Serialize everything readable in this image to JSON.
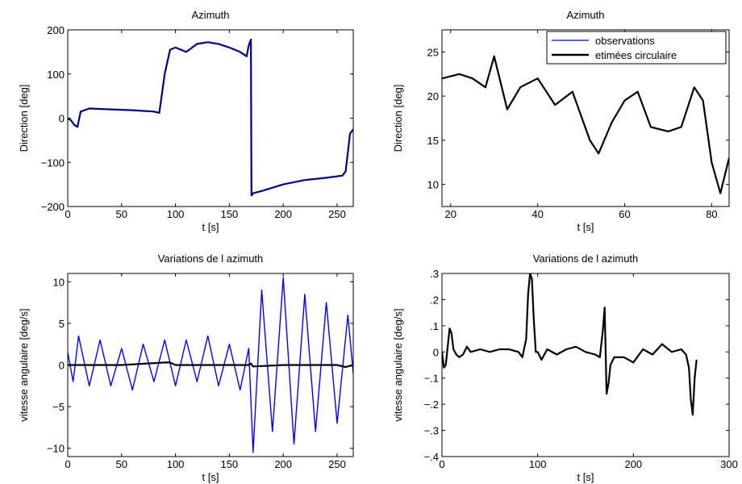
{
  "chart_data": [
    {
      "type": "line",
      "title": "Azimuth",
      "xlabel": "t [s]",
      "ylabel": "Direction [deg]",
      "xlim": [
        0,
        265
      ],
      "ylim": [
        -200,
        200
      ],
      "xticks": [
        0,
        50,
        100,
        150,
        200,
        250
      ],
      "yticks": [
        -200,
        -100,
        0,
        100,
        200
      ],
      "grid": false,
      "series": [
        {
          "color": "#0000ff",
          "x": [
            0,
            3,
            6,
            9,
            12,
            20,
            40,
            60,
            80,
            85,
            90,
            95,
            100,
            110,
            120,
            130,
            140,
            150,
            160,
            166,
            168,
            170,
            170.5,
            172,
            180,
            200,
            220,
            240,
            255,
            258,
            262,
            265
          ],
          "y": [
            0,
            -5,
            -15,
            -20,
            15,
            22,
            20,
            18,
            15,
            12,
            100,
            155,
            160,
            150,
            168,
            172,
            168,
            160,
            150,
            140,
            165,
            178,
            -175,
            -170,
            -165,
            -150,
            -140,
            -135,
            -130,
            -120,
            -35,
            -25
          ]
        },
        {
          "color": "#000080",
          "x": [
            0,
            3,
            6,
            9,
            12,
            20,
            40,
            60,
            80,
            85,
            90,
            95,
            100,
            110,
            120,
            130,
            140,
            150,
            160,
            166,
            168,
            170,
            170.5,
            172,
            180,
            200,
            220,
            240,
            255,
            258,
            262,
            265
          ],
          "y": [
            0,
            -5,
            -15,
            -20,
            15,
            22,
            20,
            18,
            15,
            12,
            100,
            155,
            160,
            150,
            168,
            172,
            168,
            160,
            150,
            140,
            165,
            178,
            -175,
            -170,
            -165,
            -150,
            -140,
            -135,
            -130,
            -120,
            -35,
            -25
          ]
        }
      ]
    },
    {
      "type": "line",
      "title": "Azimuth",
      "xlabel": "t [s]",
      "ylabel": "Direction [deg]",
      "xlim": [
        18,
        84
      ],
      "ylim": [
        7.5,
        27.5
      ],
      "xticks": [
        20,
        40,
        60,
        80
      ],
      "yticks": [
        10,
        15,
        20,
        25
      ],
      "grid": false,
      "legend": {
        "position": "top-right"
      },
      "series": [
        {
          "name": "observations",
          "color": "#0000ff",
          "x": [
            18,
            22,
            25,
            28,
            30,
            33,
            36,
            40,
            44,
            48,
            52,
            54,
            57,
            60,
            63,
            66,
            70,
            73,
            76,
            78,
            80,
            82,
            84
          ],
          "y": [
            22,
            22.5,
            22,
            21,
            24.5,
            18.5,
            21,
            22,
            19,
            20.5,
            15,
            13.5,
            17,
            19.5,
            20.5,
            16.5,
            16,
            16.5,
            21,
            19.5,
            12.5,
            9,
            13
          ]
        },
        {
          "name": "etimées circulaire",
          "color": "#000000",
          "x": [
            18,
            22,
            25,
            28,
            30,
            33,
            36,
            40,
            44,
            48,
            52,
            54,
            57,
            60,
            63,
            66,
            70,
            73,
            76,
            78,
            80,
            82,
            84
          ],
          "y": [
            22,
            22.5,
            22,
            21,
            24.5,
            18.5,
            21,
            22,
            19,
            20.5,
            15,
            13.5,
            17,
            19.5,
            20.5,
            16.5,
            16,
            16.5,
            21,
            19.5,
            12.5,
            9,
            13
          ]
        }
      ]
    },
    {
      "type": "line",
      "title": "Variations de l azimuth",
      "xlabel": "t [s]",
      "ylabel": "vitesse angulaire [deg/s]",
      "xlim": [
        0,
        265
      ],
      "ylim": [
        -11,
        11
      ],
      "xticks": [
        0,
        50,
        100,
        150,
        200,
        250
      ],
      "yticks": [
        -10,
        -5,
        0,
        5,
        10
      ],
      "grid": false,
      "series": [
        {
          "color": "#0000ff",
          "x": [
            0,
            5,
            10,
            20,
            30,
            40,
            50,
            60,
            70,
            80,
            90,
            100,
            110,
            120,
            130,
            140,
            150,
            160,
            168,
            172,
            180,
            190,
            200,
            210,
            220,
            230,
            240,
            250,
            260,
            265
          ],
          "y": [
            1.5,
            -2,
            3.5,
            -2.5,
            3,
            -2.5,
            2,
            -3,
            2.5,
            -2,
            3,
            -2.5,
            3,
            -2,
            3.5,
            -2.5,
            2.5,
            -3,
            2,
            -10.5,
            9,
            -8,
            10.5,
            -9.5,
            8.5,
            -8,
            7.5,
            -7,
            6,
            -1
          ]
        },
        {
          "color": "#000000",
          "x": [
            0,
            50,
            90,
            95,
            100,
            150,
            168,
            170,
            172,
            200,
            250,
            258,
            262,
            265
          ],
          "y": [
            0,
            0,
            0.3,
            0.3,
            0,
            0,
            0,
            0.17,
            -0.17,
            0,
            0,
            -0.24,
            -0.1,
            -0.02
          ]
        }
      ]
    },
    {
      "type": "line",
      "title": "Variations de l azimuth",
      "xlabel": "t [s]",
      "ylabel": "vitesse angulaire [deg/s]",
      "xlim": [
        0,
        300
      ],
      "ylim": [
        -0.4,
        0.3
      ],
      "xticks": [
        0,
        100,
        200,
        300
      ],
      "yticks": [
        -0.4,
        -0.3,
        -0.2,
        -0.1,
        0,
        0.1,
        0.2,
        0.3
      ],
      "grid": false,
      "series": [
        {
          "color": "#000000",
          "x": [
            0,
            2,
            4,
            6,
            8,
            10,
            12,
            15,
            18,
            22,
            26,
            30,
            40,
            50,
            60,
            70,
            80,
            84,
            88,
            90,
            92,
            94,
            96,
            98,
            100,
            104,
            110,
            120,
            130,
            140,
            150,
            160,
            165,
            168,
            170,
            172,
            174,
            176,
            180,
            190,
            200,
            210,
            220,
            230,
            240,
            250,
            255,
            258,
            260,
            262,
            264,
            266
          ],
          "y": [
            0,
            -0.06,
            -0.05,
            0.02,
            0.09,
            0.07,
            0.01,
            -0.01,
            -0.02,
            -0.01,
            0.02,
            0.0,
            0.01,
            0.0,
            0.01,
            0.01,
            0.0,
            -0.02,
            0.05,
            0.22,
            0.3,
            0.28,
            0.12,
            0.0,
            0.0,
            -0.03,
            0.01,
            -0.01,
            0.01,
            0.02,
            0.0,
            -0.01,
            -0.02,
            0.08,
            0.17,
            -0.16,
            -0.12,
            -0.05,
            -0.02,
            -0.02,
            -0.04,
            0.01,
            -0.01,
            0.03,
            0.0,
            0.01,
            -0.01,
            -0.06,
            -0.18,
            -0.24,
            -0.1,
            -0.03
          ]
        }
      ]
    }
  ]
}
